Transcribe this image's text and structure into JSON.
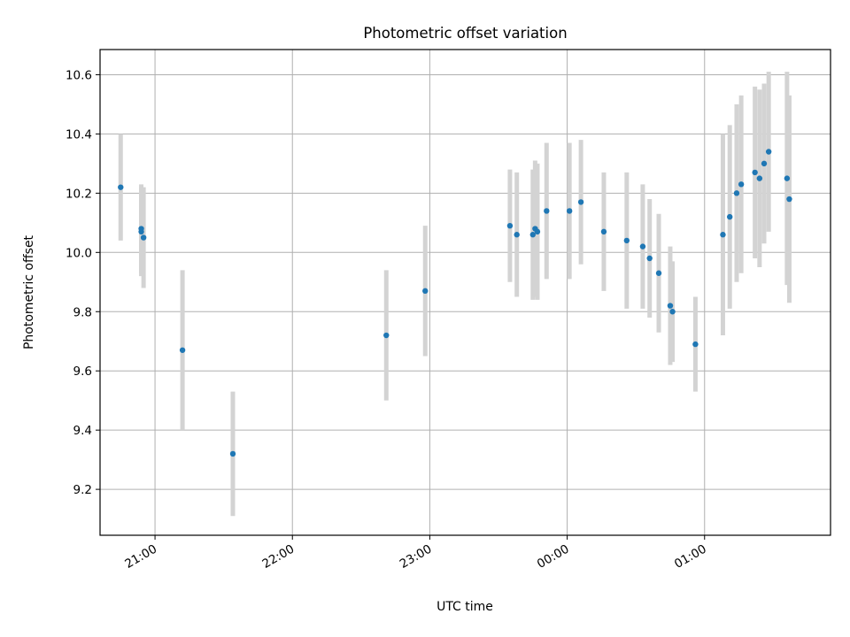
{
  "chart_data": {
    "type": "scatter",
    "title": "Photometric offset variation",
    "xlabel": "UTC time",
    "ylabel": "Photometric offset",
    "x_axis": {
      "kind": "time",
      "range": [
        "20:36",
        "01:55"
      ],
      "ticks": [
        "21:00",
        "22:00",
        "23:00",
        "00:00",
        "01:00"
      ]
    },
    "y_axis": {
      "range": [
        9.045,
        10.685
      ],
      "ticks": [
        "9.2",
        "9.4",
        "9.6",
        "9.8",
        "10.0",
        "10.2",
        "10.4",
        "10.6"
      ]
    },
    "grid": true,
    "legend": "none",
    "colors": {
      "marker": "#1f77b4",
      "errorbar": "#d3d3d3",
      "grid": "#b0b0b0"
    },
    "series": [
      {
        "x": [
          "20:45",
          "20:54",
          "20:54",
          "20:55",
          "21:12",
          "21:34",
          "22:41",
          "22:58",
          "23:35",
          "23:38",
          "23:45",
          "23:46",
          "23:47",
          "23:51",
          "00:01",
          "00:06",
          "00:16",
          "00:26",
          "00:33",
          "00:36",
          "00:40",
          "00:45",
          "00:46",
          "00:56",
          "01:08",
          "01:11",
          "01:14",
          "01:16",
          "01:22",
          "01:24",
          "01:26",
          "01:28",
          "01:36",
          "01:37"
        ],
        "y": [
          10.22,
          10.07,
          10.08,
          10.05,
          9.67,
          9.32,
          9.72,
          9.87,
          10.09,
          10.06,
          10.06,
          10.08,
          10.07,
          10.14,
          10.14,
          10.17,
          10.07,
          10.04,
          10.02,
          9.98,
          9.93,
          9.82,
          9.8,
          9.69,
          10.06,
          10.12,
          10.2,
          10.23,
          10.27,
          10.25,
          10.3,
          10.34,
          10.25,
          10.18
        ],
        "error": [
          0.18,
          0.15,
          0.15,
          0.17,
          0.27,
          0.21,
          0.22,
          0.22,
          0.19,
          0.21,
          0.22,
          0.23,
          0.23,
          0.23,
          0.23,
          0.21,
          0.2,
          0.23,
          0.21,
          0.2,
          0.2,
          0.2,
          0.17,
          0.16,
          0.34,
          0.31,
          0.3,
          0.3,
          0.29,
          0.3,
          0.27,
          0.27,
          0.36,
          0.35
        ]
      }
    ]
  }
}
